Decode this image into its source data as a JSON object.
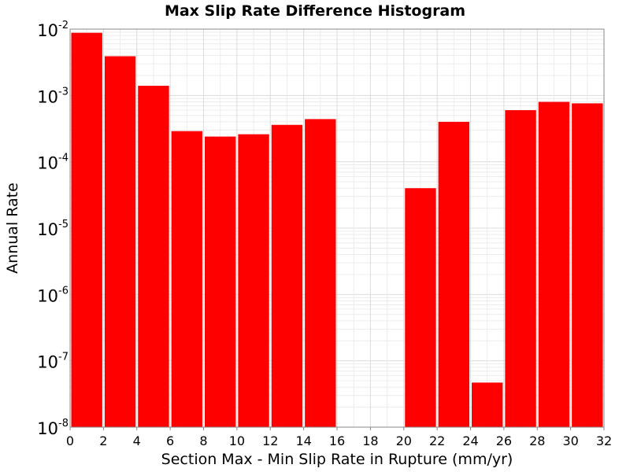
{
  "chart_data": {
    "type": "bar",
    "title": "Max Slip Rate Difference Histogram",
    "xlabel": "Section Max - Min Slip Rate in Rupture (mm/yr)",
    "ylabel": "Annual Rate",
    "y_scale": "log",
    "ylim": [
      1e-08,
      0.01
    ],
    "xlim": [
      0,
      32
    ],
    "grid": true,
    "bar_color": "#ff0000",
    "bin_width": 2,
    "x_ticks": [
      "0",
      "2",
      "4",
      "6",
      "8",
      "10",
      "12",
      "14",
      "16",
      "18",
      "20",
      "22",
      "24",
      "26",
      "28",
      "30",
      "32"
    ],
    "y_ticks": [
      {
        "base": "10",
        "exp": "-2"
      },
      {
        "base": "10",
        "exp": "-3"
      },
      {
        "base": "10",
        "exp": "-4"
      },
      {
        "base": "10",
        "exp": "-5"
      },
      {
        "base": "10",
        "exp": "-6"
      },
      {
        "base": "10",
        "exp": "-7"
      },
      {
        "base": "10",
        "exp": "-8"
      }
    ],
    "bins": [
      {
        "x": 0,
        "value": 0.0088
      },
      {
        "x": 2,
        "value": 0.0039
      },
      {
        "x": 4,
        "value": 0.0014
      },
      {
        "x": 6,
        "value": 0.00029
      },
      {
        "x": 8,
        "value": 0.00024
      },
      {
        "x": 10,
        "value": 0.00026
      },
      {
        "x": 12,
        "value": 0.00036
      },
      {
        "x": 14,
        "value": 0.00044
      },
      {
        "x": 20,
        "value": 4e-05
      },
      {
        "x": 22,
        "value": 0.0004
      },
      {
        "x": 24,
        "value": 4.7e-08
      },
      {
        "x": 26,
        "value": 0.0006
      },
      {
        "x": 28,
        "value": 0.0008
      },
      {
        "x": 30,
        "value": 0.00076
      }
    ]
  }
}
